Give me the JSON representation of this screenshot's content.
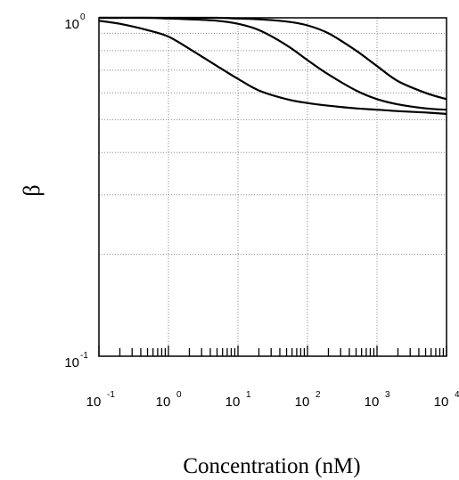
{
  "chart_data": {
    "type": "line",
    "title": "",
    "xlabel": "Concentration (nM)",
    "ylabel": "β",
    "xscale": "log",
    "yscale": "log",
    "xlim": [
      0.1,
      10000
    ],
    "ylim": [
      0.1,
      1
    ],
    "grid": true,
    "x_ticks": [
      {
        "base": "10",
        "exp": "-1"
      },
      {
        "base": "10",
        "exp": "0"
      },
      {
        "base": "10",
        "exp": "1"
      },
      {
        "base": "10",
        "exp": "2"
      },
      {
        "base": "10",
        "exp": "3"
      },
      {
        "base": "10",
        "exp": "4"
      }
    ],
    "y_ticks": [
      {
        "base": "10",
        "exp": "-1"
      },
      {
        "base": "10",
        "exp": "0"
      }
    ],
    "series": [
      {
        "x": [
          0.1,
          0.2,
          0.5,
          1,
          2,
          5,
          10,
          20,
          50,
          100,
          200,
          500,
          1000,
          2000,
          5000,
          10000
        ],
        "values": [
          0.98,
          0.96,
          0.92,
          0.88,
          0.81,
          0.72,
          0.66,
          0.61,
          0.575,
          0.56,
          0.55,
          0.54,
          0.535,
          0.53,
          0.525,
          0.52
        ]
      },
      {
        "x": [
          0.1,
          0.5,
          1,
          2,
          5,
          10,
          20,
          50,
          100,
          200,
          500,
          1000,
          2000,
          5000,
          10000
        ],
        "values": [
          1.0,
          1.0,
          0.995,
          0.99,
          0.98,
          0.96,
          0.92,
          0.83,
          0.75,
          0.68,
          0.61,
          0.575,
          0.555,
          0.54,
          0.535
        ]
      },
      {
        "x": [
          0.1,
          1,
          5,
          10,
          20,
          50,
          100,
          200,
          500,
          1000,
          2000,
          5000,
          10000
        ],
        "values": [
          1.0,
          1.0,
          1.0,
          0.995,
          0.99,
          0.975,
          0.95,
          0.9,
          0.8,
          0.72,
          0.65,
          0.6,
          0.575
        ]
      }
    ]
  }
}
